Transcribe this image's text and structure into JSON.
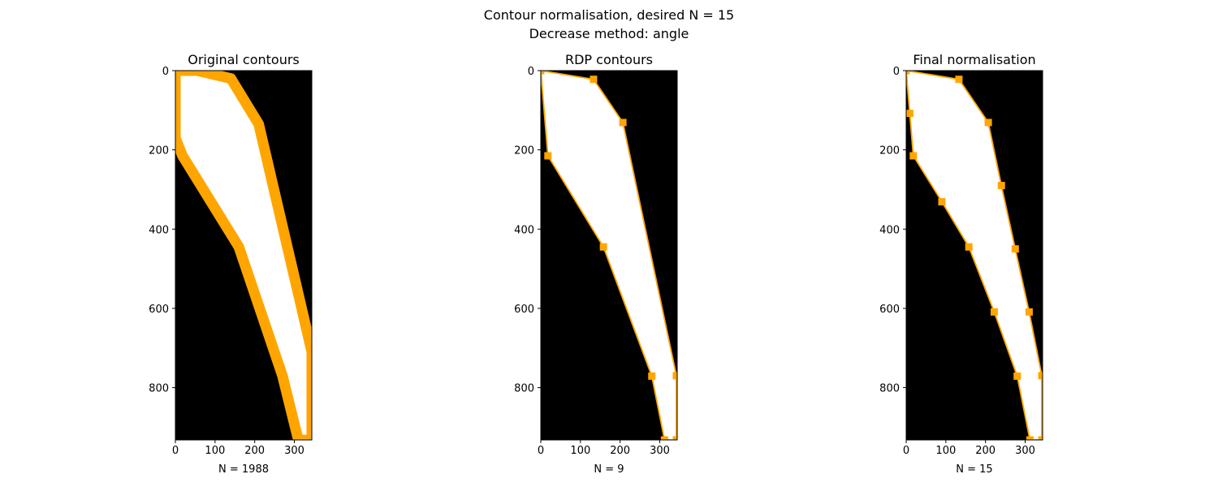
{
  "suptitle": {
    "line1": "Contour normalisation, desired N = 15",
    "line2": "Decrease method: angle"
  },
  "colors": {
    "accent": "#FFA500",
    "background": "#000000",
    "shape": "#FFFFFF"
  },
  "chart_data": [
    {
      "type": "scatter",
      "title": "Original contours",
      "xlabel": "N = 1988",
      "xlim": [
        0,
        344
      ],
      "ylim": [
        932,
        0
      ],
      "xticks": [
        0,
        100,
        200,
        300
      ],
      "yticks": [
        0,
        200,
        400,
        600,
        800
      ],
      "marker": "dense outline",
      "points": [
        [
          0,
          0
        ],
        [
          55,
          0
        ],
        [
          140,
          20
        ],
        [
          210,
          135
        ],
        [
          344,
          710
        ],
        [
          344,
          932
        ],
        [
          310,
          932
        ],
        [
          270,
          770
        ],
        [
          160,
          445
        ],
        [
          18,
          215
        ],
        [
          0,
          170
        ]
      ]
    },
    {
      "type": "line",
      "title": "RDP contours",
      "xlabel": "N = 9",
      "xlim": [
        0,
        344
      ],
      "ylim": [
        932,
        0
      ],
      "xticks": [
        0,
        100,
        200,
        300
      ],
      "yticks": [
        0,
        200,
        400,
        600,
        800
      ],
      "marker": "square",
      "points": [
        [
          0,
          0
        ],
        [
          133,
          22
        ],
        [
          207,
          131
        ],
        [
          342,
          770
        ],
        [
          342,
          932
        ],
        [
          312,
          932
        ],
        [
          280,
          771
        ],
        [
          158,
          445
        ],
        [
          18,
          215
        ]
      ]
    },
    {
      "type": "line",
      "title": "Final normalisation",
      "xlabel": "N = 15",
      "xlim": [
        0,
        344
      ],
      "ylim": [
        932,
        0
      ],
      "xticks": [
        0,
        100,
        200,
        300
      ],
      "yticks": [
        0,
        200,
        400,
        600,
        800
      ],
      "marker": "square",
      "points": [
        [
          0,
          0
        ],
        [
          133,
          22
        ],
        [
          207,
          131
        ],
        [
          240,
          290
        ],
        [
          275,
          450
        ],
        [
          310,
          609
        ],
        [
          342,
          770
        ],
        [
          342,
          932
        ],
        [
          312,
          932
        ],
        [
          280,
          771
        ],
        [
          222,
          609
        ],
        [
          158,
          445
        ],
        [
          90,
          331
        ],
        [
          18,
          215
        ],
        [
          9,
          108
        ]
      ]
    }
  ]
}
